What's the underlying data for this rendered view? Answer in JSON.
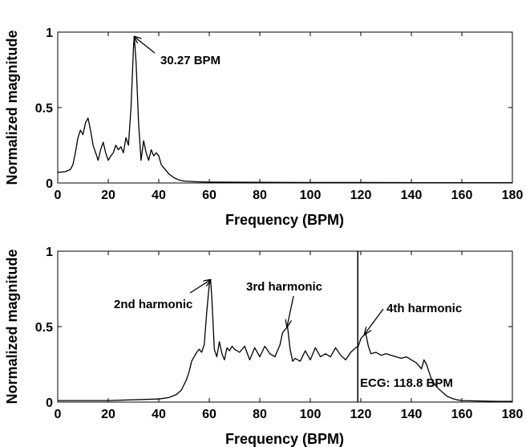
{
  "chart_data": [
    {
      "type": "line",
      "title": "",
      "xlabel": "Frequency (BPM)",
      "ylabel": "Normalized magnitude",
      "xlim": [
        0,
        180
      ],
      "ylim": [
        0,
        1
      ],
      "xticks": [
        "0",
        "20",
        "40",
        "60",
        "80",
        "100",
        "120",
        "140",
        "160",
        "180"
      ],
      "yticks": [
        "0",
        "0.5",
        "1"
      ],
      "grid": false,
      "series": [
        {
          "x": [
            0,
            3,
            5,
            6,
            7,
            8,
            9,
            10,
            11,
            12,
            13,
            14,
            15,
            16,
            17,
            18,
            19,
            20,
            21,
            22,
            23,
            24,
            25,
            26,
            27,
            28,
            29,
            30,
            30.3,
            31,
            32,
            33,
            34,
            35,
            36,
            37,
            38,
            39,
            40,
            41,
            42,
            44,
            46,
            48,
            50,
            55,
            60,
            80,
            100,
            120,
            140,
            160,
            180
          ],
          "y": [
            0.07,
            0.075,
            0.09,
            0.12,
            0.2,
            0.3,
            0.35,
            0.32,
            0.4,
            0.43,
            0.35,
            0.25,
            0.2,
            0.15,
            0.22,
            0.27,
            0.2,
            0.15,
            0.18,
            0.2,
            0.25,
            0.22,
            0.24,
            0.2,
            0.3,
            0.25,
            0.5,
            0.9,
            0.97,
            0.8,
            0.4,
            0.15,
            0.28,
            0.2,
            0.15,
            0.22,
            0.18,
            0.2,
            0.18,
            0.12,
            0.1,
            0.06,
            0.035,
            0.02,
            0.013,
            0.008,
            0.006,
            0.004,
            0.003,
            0.003,
            0.002,
            0.002,
            0.002
          ]
        }
      ],
      "annotations": [
        {
          "text": "30.27 BPM",
          "x": 30.27,
          "y": 0.97
        }
      ]
    },
    {
      "type": "line",
      "title": "",
      "xlabel": "Frequency (BPM)",
      "ylabel": "Normalized magnitude",
      "xlim": [
        0,
        180
      ],
      "ylim": [
        0,
        1
      ],
      "xticks": [
        "0",
        "20",
        "40",
        "60",
        "80",
        "100",
        "120",
        "140",
        "160",
        "180"
      ],
      "yticks": [
        "0",
        "0.5",
        "1"
      ],
      "grid": false,
      "series": [
        {
          "x": [
            0,
            20,
            40,
            44,
            47,
            49,
            51,
            52,
            53,
            54,
            55,
            56,
            57,
            58,
            59,
            60,
            60.5,
            61,
            62,
            63,
            64,
            65,
            66,
            67,
            68,
            69,
            70,
            72,
            74,
            76,
            78,
            80,
            82,
            84,
            86,
            88,
            89,
            90,
            91,
            92,
            93,
            94,
            96,
            98,
            100,
            102,
            104,
            106,
            108,
            110,
            112,
            114,
            116,
            118,
            119,
            120,
            121,
            122,
            123,
            124,
            126,
            128,
            130,
            132,
            134,
            136,
            138,
            140,
            142,
            144,
            145,
            146,
            147,
            148,
            150,
            152,
            154,
            156,
            158,
            160,
            165,
            170,
            175,
            180
          ],
          "y": [
            0.01,
            0.01,
            0.02,
            0.03,
            0.05,
            0.08,
            0.15,
            0.2,
            0.27,
            0.3,
            0.33,
            0.35,
            0.33,
            0.38,
            0.6,
            0.78,
            0.81,
            0.7,
            0.35,
            0.3,
            0.4,
            0.32,
            0.28,
            0.36,
            0.34,
            0.37,
            0.35,
            0.33,
            0.37,
            0.28,
            0.36,
            0.3,
            0.37,
            0.32,
            0.3,
            0.38,
            0.46,
            0.48,
            0.5,
            0.35,
            0.27,
            0.29,
            0.27,
            0.34,
            0.28,
            0.36,
            0.3,
            0.32,
            0.3,
            0.36,
            0.31,
            0.28,
            0.33,
            0.36,
            0.37,
            0.42,
            0.44,
            0.45,
            0.37,
            0.32,
            0.33,
            0.31,
            0.32,
            0.31,
            0.3,
            0.29,
            0.3,
            0.28,
            0.26,
            0.22,
            0.28,
            0.25,
            0.2,
            0.15,
            0.1,
            0.07,
            0.04,
            0.025,
            0.015,
            0.01,
            0.008,
            0.006,
            0.005,
            0.005
          ]
        }
      ],
      "vline": {
        "x": 118.8,
        "label": "ECG: 118.8 BPM"
      },
      "annotations": [
        {
          "text": "2nd harmonic",
          "x": 60.5,
          "y": 0.81
        },
        {
          "text": "3rd harmonic",
          "x": 90.8,
          "y": 0.5
        },
        {
          "text": "4th harmonic",
          "x": 121.5,
          "y": 0.45
        }
      ]
    }
  ]
}
